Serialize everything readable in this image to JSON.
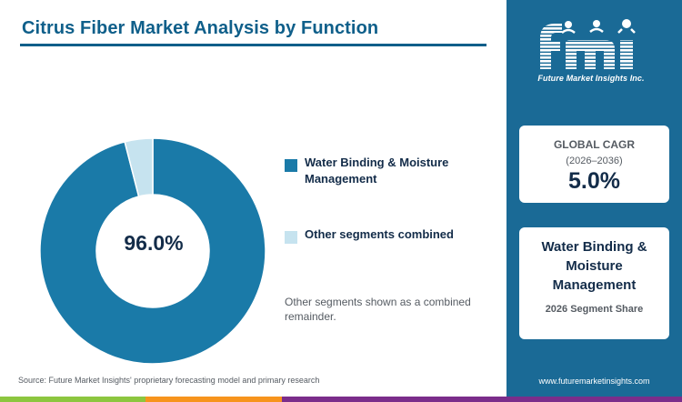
{
  "header": {
    "title": "Citrus Fiber Market Analysis by Function"
  },
  "chart_data": {
    "type": "pie",
    "subtype": "donut",
    "categories": [
      "Water Binding & Moisture Management",
      "Other segments combined"
    ],
    "values": [
      96.0,
      4.0
    ],
    "unit": "%",
    "colors": [
      "#1a7aa8",
      "#c6e3ef"
    ],
    "center_label": "96.0%",
    "legend_position": "right"
  },
  "legend": {
    "items": [
      {
        "label": "Water Binding & Moisture Management",
        "color": "#1a7aa8"
      },
      {
        "label": "Other segments combined",
        "color": "#c6e3ef"
      }
    ]
  },
  "note": "Other segments shown as a combined remainder.",
  "source": "Source: Future Market Insights' proprietary forecasting model and primary research",
  "brand": {
    "logo_text": "fmi",
    "logo_subtitle": "Future Market Insights Inc.",
    "website": "www.futuremarketinsights.com",
    "accent": "#1a6a96"
  },
  "cagr_card": {
    "label": "GLOBAL CAGR",
    "period": "(2026–2036)",
    "value": "5.0%"
  },
  "segment_card": {
    "name": "Water Binding & Moisture Management",
    "share_label": "2026 Segment Share"
  },
  "footer_bar_colors": [
    "#8cc63f",
    "#f7941d",
    "#7b2d8b"
  ]
}
